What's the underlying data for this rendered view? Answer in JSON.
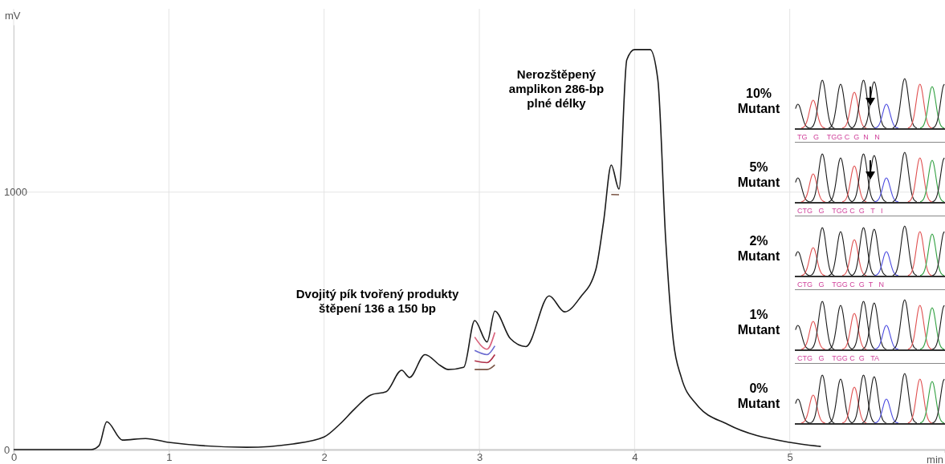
{
  "chart_data": {
    "type": "line",
    "xlabel": "min",
    "ylabel": "mV",
    "x": [
      0,
      0.5,
      0.55,
      0.6,
      0.7,
      0.85,
      1,
      1.5,
      1.8,
      2,
      2.1,
      2.2,
      2.3,
      2.4,
      2.5,
      2.55,
      2.65,
      2.75,
      2.8,
      2.9,
      2.97,
      3.05,
      3.1,
      3.2,
      3.3,
      3.45,
      3.55,
      3.65,
      3.75,
      3.8,
      3.85,
      3.9,
      3.95,
      4,
      4.1,
      4.15,
      4.2,
      4.25,
      4.3,
      4.4,
      4.6,
      5,
      5.2
    ],
    "series": [
      {
        "color": "#7a5545",
        "values": [
          null,
          null,
          null,
          null,
          null,
          null,
          null,
          null,
          null,
          null,
          null,
          null,
          null,
          null,
          null,
          null,
          null,
          null,
          null,
          null,
          311,
          311,
          329,
          null,
          null,
          null,
          null,
          null,
          null,
          null,
          991,
          990,
          null,
          null,
          null,
          null,
          null,
          null,
          null,
          null,
          null,
          null,
          null
        ]
      },
      {
        "color": "#b03048",
        "values": [
          null,
          null,
          null,
          null,
          null,
          null,
          null,
          null,
          null,
          null,
          null,
          null,
          null,
          null,
          null,
          null,
          null,
          null,
          null,
          null,
          345,
          338,
          369,
          null,
          null,
          null,
          null,
          null,
          null,
          null,
          null,
          null,
          null,
          null,
          null,
          null,
          null,
          null,
          null,
          null,
          null,
          null,
          null
        ]
      },
      {
        "color": "#6a6ad0",
        "values": [
          null,
          null,
          null,
          null,
          null,
          null,
          null,
          null,
          null,
          null,
          null,
          null,
          null,
          null,
          null,
          null,
          null,
          null,
          null,
          null,
          385,
          369,
          403,
          null,
          null,
          null,
          null,
          null,
          null,
          null,
          null,
          null,
          null,
          null,
          null,
          null,
          null,
          null,
          null,
          null,
          null,
          null,
          null
        ]
      },
      {
        "color": "#d9607a",
        "values": [
          null,
          null,
          null,
          null,
          null,
          null,
          null,
          null,
          null,
          null,
          null,
          null,
          null,
          null,
          null,
          null,
          null,
          null,
          null,
          null,
          437,
          390,
          455,
          null,
          null,
          null,
          null,
          null,
          null,
          null,
          null,
          null,
          null,
          null,
          null,
          null,
          null,
          null,
          null,
          null,
          null,
          null,
          null
        ]
      },
      {
        "color": "#1a1a1a",
        "values": [
          0,
          0,
          15,
          108,
          37,
          43,
          28,
          9,
          22,
          49,
          98,
          160,
          212,
          225,
          308,
          280,
          369,
          326,
          311,
          320,
          501,
          418,
          538,
          431,
          400,
          597,
          535,
          591,
          698,
          883,
          1105,
          1012,
          1514,
          1554,
          1554,
          1437,
          822,
          422,
          283,
          175,
          98,
          28,
          12
        ]
      }
    ],
    "xlim": [
      0,
      6
    ],
    "ylim": [
      0,
      1650
    ],
    "xticks": [
      0,
      1,
      2,
      3,
      4,
      5
    ],
    "yticks": [
      0,
      1000
    ],
    "grid": true,
    "annotations": [
      "Dvojitý pík tvořený produkty\nštěpení 136 a 150 bp",
      "Nerozštěpený\namplikon 286-bp\nplné délky",
      "10%\nMutant",
      "TG   G    TGG C  G  N   N",
      "5%\nMutant",
      "CTG   G    TGG C  G   T   I",
      "2%\nMutant",
      "CTG   G    TGG C  G  T   N",
      "1%\nMutant",
      "CTG   G    TGG C  G   TA",
      "0%\nMutant"
    ]
  }
}
